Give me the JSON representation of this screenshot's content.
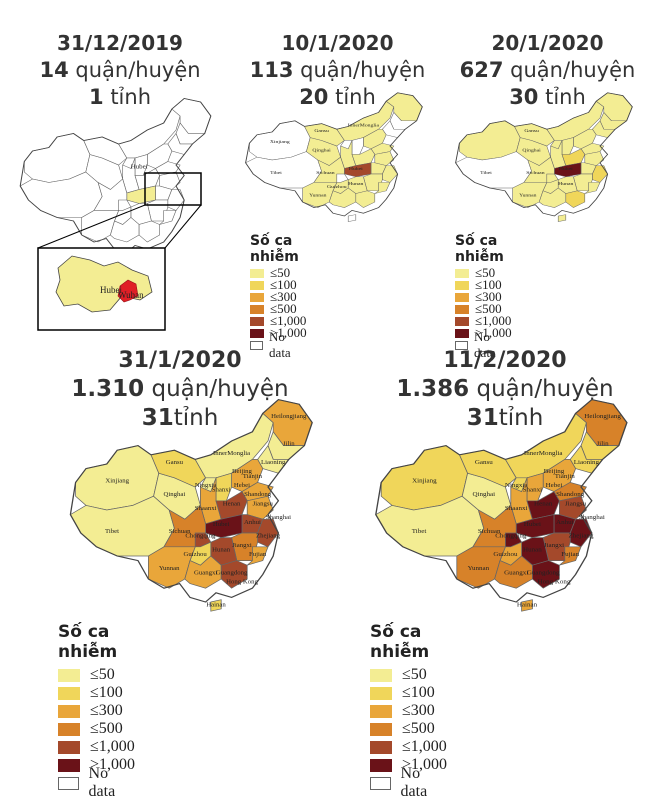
{
  "palette": {
    "le50": "#f3ed93",
    "le100": "#f0d65a",
    "le300": "#e9a63a",
    "le500": "#d78229",
    "le1000": "#a4492b",
    "gt1000": "#6a1218",
    "nodata": "#ffffff",
    "border": "#555555"
  },
  "panels": [
    {
      "id": "p1",
      "date": "31/12/2019",
      "districts_count": "14",
      "districts_unit": "quận/huyện",
      "provinces_count": "1",
      "provinces_unit": "tỉnh",
      "inset": {
        "labels": [
          "Hubei",
          "Wuhan"
        ]
      },
      "map_labels": [
        "Hubei"
      ]
    },
    {
      "id": "p2",
      "date": "10/1/2020",
      "districts_count": "113",
      "districts_unit": "quận/huyện",
      "provinces_count": "20",
      "provinces_unit": "tỉnh",
      "map_labels": [
        "Xinjiang",
        "InnerMonglia",
        "Gansu",
        "Qinghai",
        "Tibet",
        "Sichuan",
        "Hubei",
        "Hunan",
        "Yunnan",
        "Guizhou"
      ]
    },
    {
      "id": "p3",
      "date": "20/1/2020",
      "districts_count": "627",
      "districts_unit": "quận/huyện",
      "provinces_count": "30",
      "provinces_unit": "tỉnh",
      "map_labels": [
        "Gansu",
        "Qinghai",
        "Tibet",
        "Sichuan",
        "Hubei",
        "Hunan",
        "Yunnan"
      ]
    },
    {
      "id": "p4",
      "date": "31/1/2020",
      "districts_count": "1.310",
      "districts_unit": "quận/huyện",
      "provinces_count": "31",
      "provinces_unit": "tỉnh",
      "map_labels": [
        "Heilongjiang",
        "Jilin",
        "Xinjiang",
        "InnerMonglia",
        "Liaoning",
        "Gansu",
        "Beijing",
        "Tianjin",
        "Hebei",
        "Ningxia",
        "Shanxi",
        "Shandong",
        "Qinghai",
        "Shaanxi",
        "Henan",
        "Jiangsu",
        "Tibet",
        "Anhui",
        "Shanghai",
        "Sichuan",
        "Chongqing",
        "Hubei",
        "Zhejiang",
        "Hunan",
        "Jiangxi",
        "Guizhou",
        "Fujian",
        "Yunnan",
        "Guangxi",
        "Guangdong",
        "Hong Kong",
        "Hainan"
      ]
    },
    {
      "id": "p5",
      "date": "11/2/2020",
      "districts_count": "1.386",
      "districts_unit": "quận/huyện",
      "provinces_count": "31",
      "provinces_unit": "tỉnh",
      "map_labels": [
        "Heilongjiang",
        "Jilin",
        "Xinjiang",
        "InnerMonglia",
        "Liaoning",
        "Gansu",
        "Beijing",
        "Tianjin",
        "Hebei",
        "Ningxia",
        "Shanxi",
        "Shandong",
        "Qinghai",
        "Shaanxi",
        "Henan",
        "Jiangsu",
        "Tibet",
        "Anhui",
        "Shanghai",
        "Sichuan",
        "Chongqing",
        "Hubei",
        "Zhejiang",
        "Hunan",
        "Jiangxi",
        "Guizhou",
        "Fujian",
        "Yunnan",
        "Guangxi",
        "Guangdong",
        "Hong Kong",
        "Hainan"
      ]
    }
  ],
  "legend": {
    "title": "Số ca nhiễm",
    "items": [
      {
        "label": "≤50",
        "color_key": "le50"
      },
      {
        "label": "≤100",
        "color_key": "le100"
      },
      {
        "label": "≤300",
        "color_key": "le300"
      },
      {
        "label": "≤500",
        "color_key": "le500"
      },
      {
        "label": "≤1,000",
        "color_key": "le1000"
      },
      {
        "label": ">1,000",
        "color_key": "gt1000"
      },
      {
        "label": "No data",
        "color_key": "nodata"
      }
    ]
  }
}
